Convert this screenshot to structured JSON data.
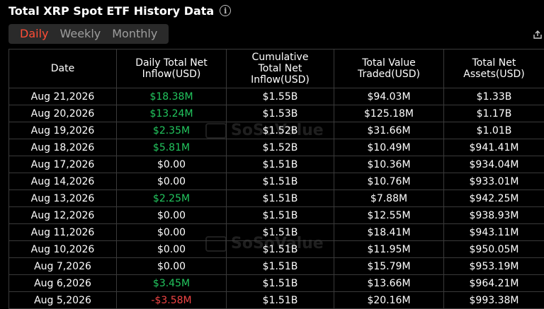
{
  "header": {
    "title": "Total XRP Spot ETF History Data",
    "info_icon": "info-icon"
  },
  "tabs": [
    {
      "label": "Daily",
      "active": true
    },
    {
      "label": "Weekly",
      "active": false
    },
    {
      "label": "Monthly",
      "active": false
    }
  ],
  "colors": {
    "positive": "#22c55e",
    "negative": "#ef4444",
    "active_tab": "#ff4d36"
  },
  "table": {
    "headers": [
      "Date",
      "Daily Total Net Inflow(USD)",
      "Cumulative Total Net Inflow(USD)",
      "Total Value Traded(USD)",
      "Total Net Assets(USD)"
    ],
    "rows": [
      [
        "Aug 21,2026",
        "$18.38M",
        "$1.55B",
        "$94.03M",
        "$1.33B"
      ],
      [
        "Aug 20,2026",
        "$13.24M",
        "$1.53B",
        "$125.18M",
        "$1.17B"
      ],
      [
        "Aug 19,2026",
        "$2.35M",
        "$1.52B",
        "$31.66M",
        "$1.01B"
      ],
      [
        "Aug 18,2026",
        "$5.81M",
        "$1.52B",
        "$10.49M",
        "$941.41M"
      ],
      [
        "Aug 17,2026",
        "$0.00",
        "$1.51B",
        "$10.36M",
        "$934.04M"
      ],
      [
        "Aug 14,2026",
        "$0.00",
        "$1.51B",
        "$10.76M",
        "$933.01M"
      ],
      [
        "Aug 13,2026",
        "$2.25M",
        "$1.51B",
        "$7.88M",
        "$942.25M"
      ],
      [
        "Aug 12,2026",
        "$0.00",
        "$1.51B",
        "$12.55M",
        "$938.93M"
      ],
      [
        "Aug 11,2026",
        "$0.00",
        "$1.51B",
        "$18.41M",
        "$943.11M"
      ],
      [
        "Aug 10,2026",
        "$0.00",
        "$1.51B",
        "$11.95M",
        "$950.05M"
      ],
      [
        "Aug 7,2026",
        "$0.00",
        "$1.51B",
        "$15.79M",
        "$953.19M"
      ],
      [
        "Aug 6,2026",
        "$3.45M",
        "$1.51B",
        "$13.66M",
        "$964.21M"
      ],
      [
        "Aug 5,2026",
        "-$3.58M",
        "$1.51B",
        "$20.16M",
        "$993.38M"
      ]
    ],
    "inflow_sign": [
      "pos",
      "pos",
      "pos",
      "pos",
      "zero",
      "zero",
      "pos",
      "zero",
      "zero",
      "zero",
      "zero",
      "pos",
      "neg"
    ]
  },
  "watermark": {
    "text": "SoSoValue"
  }
}
